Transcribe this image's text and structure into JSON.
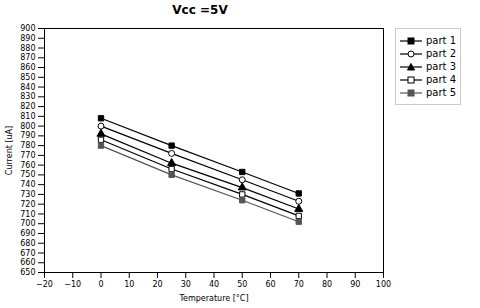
{
  "chart_data": {
    "type": "line",
    "title": "Vcc =5V",
    "x_label": "Temperature [°C]",
    "y_label": "Current [uA]",
    "x": [
      0,
      25,
      50,
      70
    ],
    "series": [
      {
        "name": "part 1",
        "color": "#000000",
        "marker": "square",
        "values": [
          808,
          780,
          753,
          731
        ]
      },
      {
        "name": "part 2",
        "color": "#000000",
        "marker": "circle-open",
        "values": [
          800,
          772,
          745,
          723
        ]
      },
      {
        "name": "part 3",
        "color": "#000000",
        "marker": "triangle",
        "values": [
          792,
          762,
          737,
          715
        ]
      },
      {
        "name": "part 4",
        "color": "#000000",
        "marker": "square-open",
        "values": [
          786,
          756,
          730,
          708
        ]
      },
      {
        "name": "part 5",
        "color": "#555555",
        "marker": "square",
        "values": [
          780,
          750,
          724,
          702
        ]
      }
    ],
    "xlim": [
      -20,
      100
    ],
    "ylim": [
      650,
      900
    ],
    "xticks": [
      -20,
      -10,
      0,
      10,
      20,
      30,
      40,
      50,
      60,
      70,
      80,
      90,
      100
    ],
    "yticks": [
      650,
      660,
      670,
      680,
      690,
      700,
      710,
      720,
      730,
      740,
      750,
      760,
      770,
      780,
      790,
      800,
      810,
      820,
      830,
      840,
      850,
      860,
      870,
      880,
      890,
      900
    ],
    "grid": false,
    "legend": "right"
  }
}
